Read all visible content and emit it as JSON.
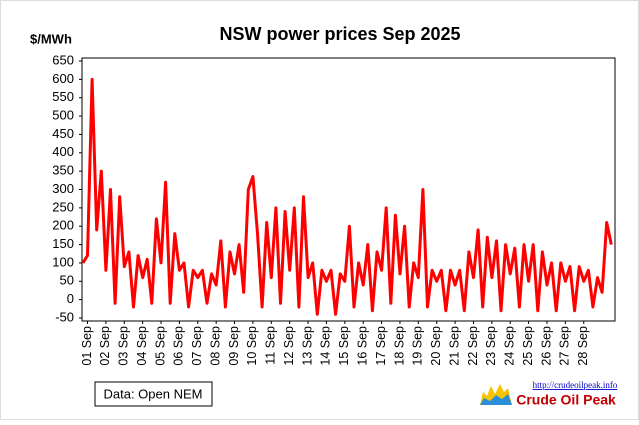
{
  "chart_data": {
    "type": "line",
    "title": "NSW power prices Sep 2025",
    "y_label": "$/MWh",
    "source": "Data: Open NEM",
    "logo_url": "http://crudeoilpeak.info",
    "logo_name": "Crude Oil Peak",
    "color": "#ff0000",
    "ylim": [
      -50,
      650
    ],
    "yticks": [
      -50,
      0,
      50,
      100,
      150,
      200,
      250,
      300,
      350,
      400,
      450,
      500,
      550,
      600,
      650
    ],
    "xlim": [
      0.7,
      29.7
    ],
    "xticks": [
      {
        "value": 1,
        "label": "01 Sep"
      },
      {
        "value": 2,
        "label": "02 Sep"
      },
      {
        "value": 3,
        "label": "03 Sep"
      },
      {
        "value": 4,
        "label": "04 Sep"
      },
      {
        "value": 5,
        "label": "05 Sep"
      },
      {
        "value": 6,
        "label": "06 Sep"
      },
      {
        "value": 7,
        "label": "07 Sep"
      },
      {
        "value": 8,
        "label": "08 Sep"
      },
      {
        "value": 9,
        "label": "09 Sep"
      },
      {
        "value": 10,
        "label": "10 Sep"
      },
      {
        "value": 11,
        "label": "11 Sep"
      },
      {
        "value": 12,
        "label": "12 Sep"
      },
      {
        "value": 13,
        "label": "13 Sep"
      },
      {
        "value": 14,
        "label": "14 Sep"
      },
      {
        "value": 15,
        "label": "15 Sep"
      },
      {
        "value": 16,
        "label": "16 Sep"
      },
      {
        "value": 17,
        "label": "17 Sep"
      },
      {
        "value": 18,
        "label": "18 Sep"
      },
      {
        "value": 19,
        "label": "19 Sep"
      },
      {
        "value": 20,
        "label": "20 Sep"
      },
      {
        "value": 21,
        "label": "21 Sep"
      },
      {
        "value": 22,
        "label": "22 Sep"
      },
      {
        "value": 23,
        "label": "23 Sep"
      },
      {
        "value": 24,
        "label": "24 Sep"
      },
      {
        "value": 25,
        "label": "25 Sep"
      },
      {
        "value": 26,
        "label": "26 Sep"
      },
      {
        "value": 27,
        "label": "27 Sep"
      },
      {
        "value": 28,
        "label": "28 Sep"
      }
    ],
    "x": [
      0.75,
      1,
      1.25,
      1.5,
      1.75,
      2,
      2.25,
      2.5,
      2.75,
      3,
      3.25,
      3.5,
      3.75,
      4,
      4.25,
      4.5,
      4.75,
      5,
      5.25,
      5.5,
      5.75,
      6,
      6.25,
      6.5,
      6.75,
      7,
      7.25,
      7.5,
      7.75,
      8,
      8.25,
      8.5,
      8.75,
      9,
      9.25,
      9.5,
      9.75,
      10,
      10.25,
      10.5,
      10.75,
      11,
      11.25,
      11.5,
      11.75,
      12,
      12.25,
      12.5,
      12.75,
      13,
      13.25,
      13.5,
      13.75,
      14,
      14.25,
      14.5,
      14.75,
      15,
      15.25,
      15.5,
      15.75,
      16,
      16.25,
      16.5,
      16.75,
      17,
      17.25,
      17.5,
      17.75,
      18,
      18.25,
      18.5,
      18.75,
      19,
      19.25,
      19.5,
      19.75,
      20,
      20.25,
      20.5,
      20.75,
      21,
      21.25,
      21.5,
      21.75,
      22,
      22.25,
      22.5,
      22.75,
      23,
      23.25,
      23.5,
      23.75,
      24,
      24.25,
      24.5,
      24.75,
      25,
      25.25,
      25.5,
      25.75,
      26,
      26.25,
      26.5,
      26.75,
      27,
      27.25,
      27.5,
      27.75,
      28,
      28.25,
      28.5,
      28.75,
      29,
      29.25,
      29.5
    ],
    "values": [
      100,
      120,
      600,
      190,
      350,
      80,
      300,
      -10,
      280,
      90,
      130,
      -20,
      120,
      60,
      110,
      -10,
      220,
      100,
      320,
      -10,
      180,
      80,
      100,
      -20,
      80,
      60,
      80,
      -10,
      70,
      40,
      160,
      -20,
      130,
      70,
      150,
      20,
      300,
      335,
      180,
      -20,
      210,
      60,
      250,
      -10,
      240,
      80,
      250,
      -20,
      280,
      60,
      100,
      -40,
      80,
      50,
      80,
      -40,
      70,
      50,
      200,
      -20,
      100,
      40,
      150,
      -30,
      130,
      80,
      250,
      -10,
      230,
      70,
      200,
      -20,
      100,
      60,
      300,
      -20,
      80,
      50,
      80,
      -30,
      80,
      40,
      80,
      -30,
      130,
      60,
      190,
      -20,
      170,
      60,
      160,
      -30,
      150,
      70,
      140,
      -20,
      150,
      50,
      150,
      -30,
      130,
      40,
      100,
      -30,
      100,
      50,
      90,
      -30,
      90,
      50,
      80,
      -20,
      60,
      20,
      210,
      150
    ]
  }
}
